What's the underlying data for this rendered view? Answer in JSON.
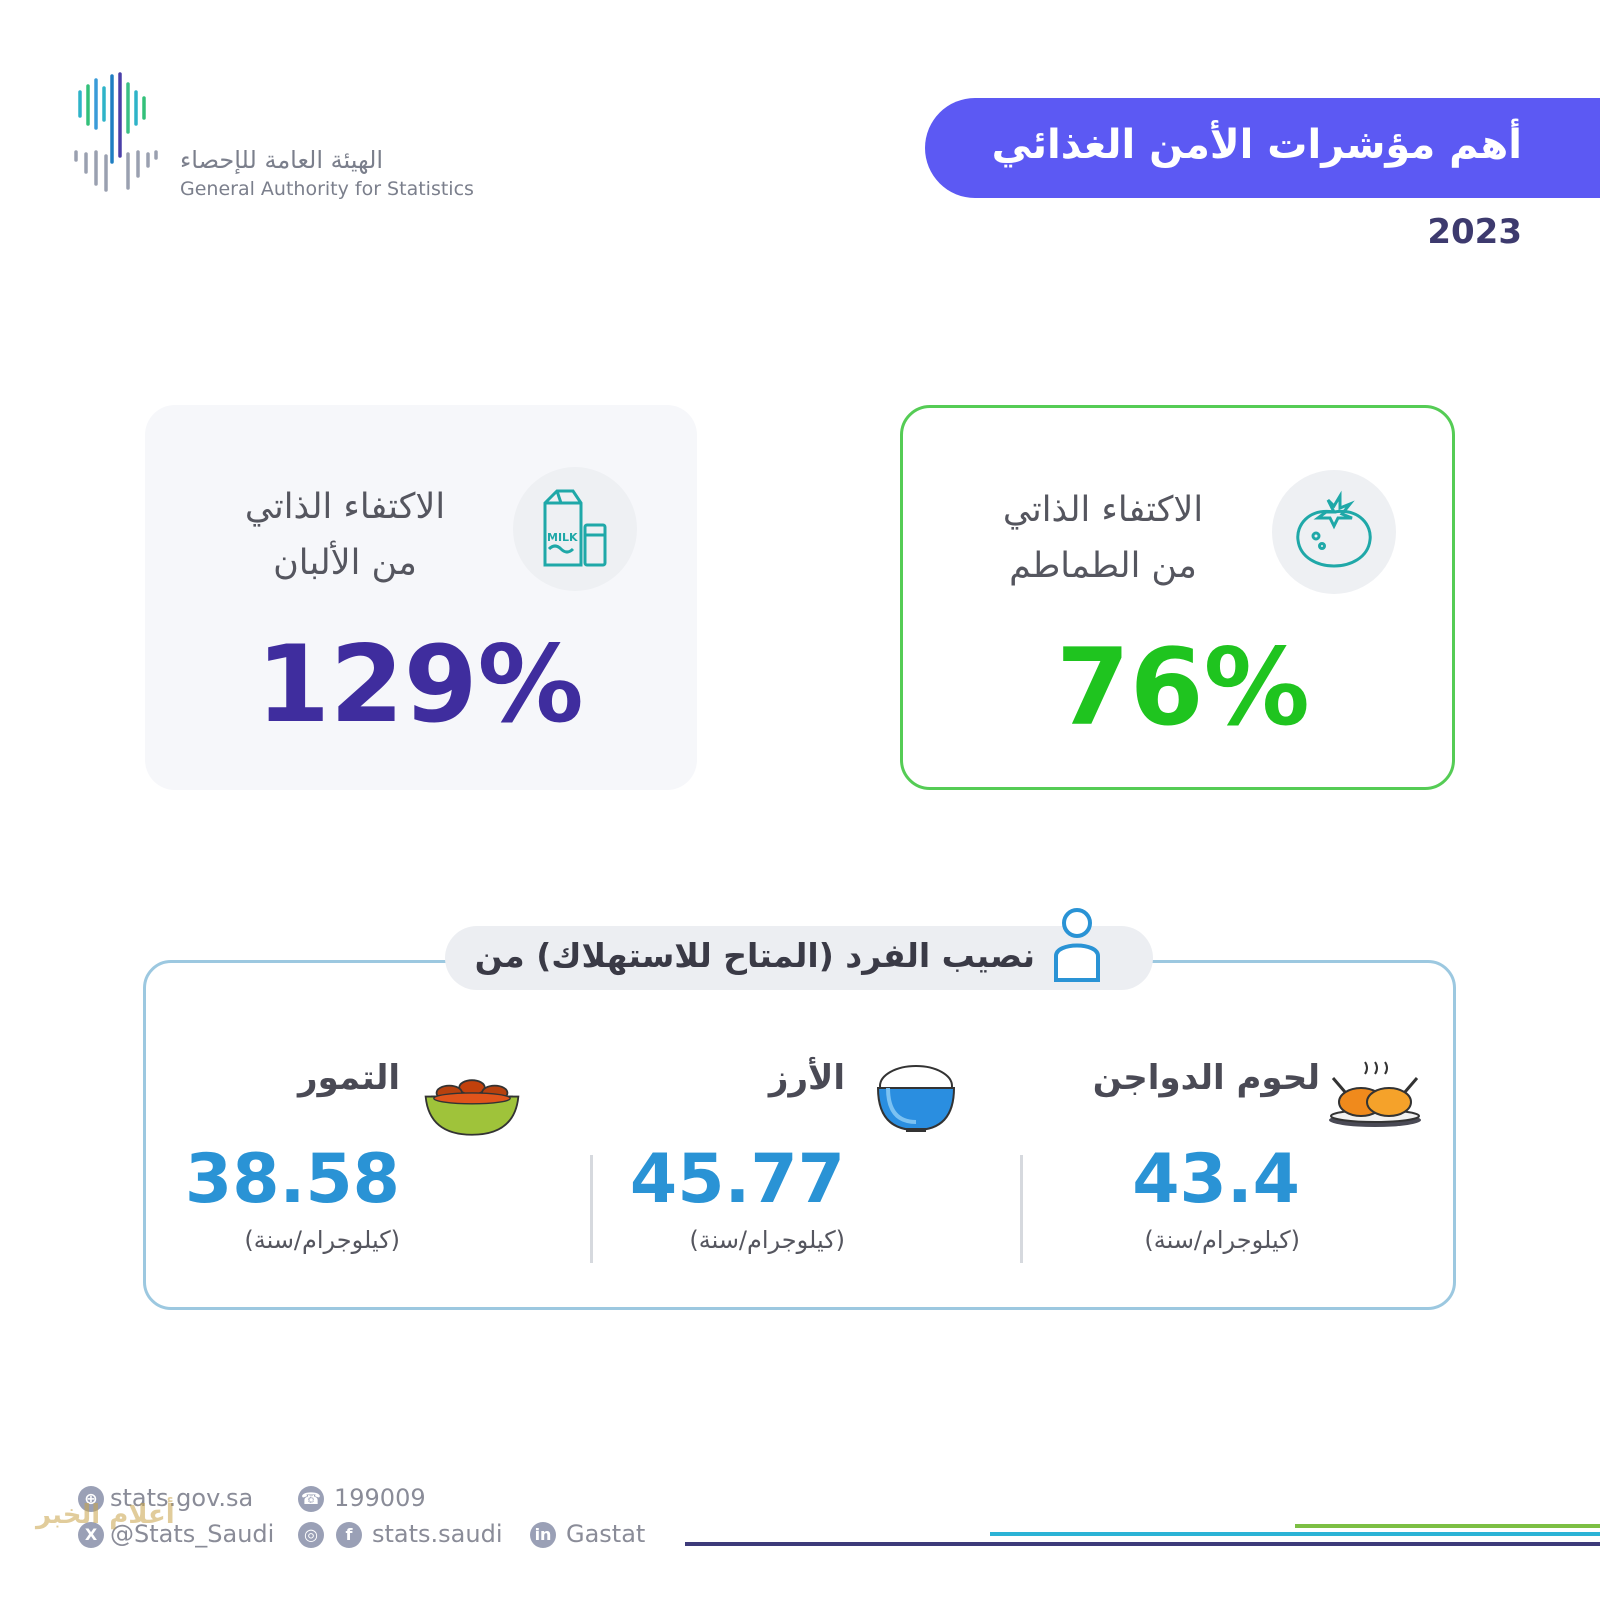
{
  "header": {
    "logo_arabic": "الهيئة العامة للإحصاء",
    "logo_english": "General Authority for Statistics",
    "title": "أهم مؤشرات الأمن الغذائي",
    "year": "2023"
  },
  "cards": {
    "dairy": {
      "label_line1": "الاكتفاء الذاتي",
      "label_line2": "من الألبان",
      "value": "129%",
      "icon": "milk-icon",
      "icon_text": "MILK",
      "color": "#3f2d9e"
    },
    "tomato": {
      "label_line1": "الاكتفاء الذاتي",
      "label_line2": "من الطماطم",
      "value": "76%",
      "icon": "tomato-icon",
      "color": "#1fc41f"
    }
  },
  "consumption": {
    "title": "نصيب الفرد (المتاح للاستهلاك) من",
    "items": [
      {
        "label": "لحوم الدواجن",
        "value": "43.4",
        "unit": "(كيلوجرام/سنة)",
        "icon": "roast-chicken-icon"
      },
      {
        "label": "الأرز",
        "value": "45.77",
        "unit": "(كيلوجرام/سنة)",
        "icon": "rice-bowl-icon"
      },
      {
        "label": "التمور",
        "value": "38.58",
        "unit": "(كيلوجرام/سنة)",
        "icon": "dates-bowl-icon"
      }
    ],
    "value_color": "#2a93d5"
  },
  "footer": {
    "website": "stats.gov.sa",
    "twitter": "@Stats_Saudi",
    "phone": "199009",
    "social": "stats.saudi",
    "linkedin": "Gastat",
    "watermark": "أعلام الخبر"
  },
  "colors": {
    "title_pill": "#5c59f3",
    "tomato_border": "#55cc55",
    "box_border": "#9cc8e0"
  }
}
